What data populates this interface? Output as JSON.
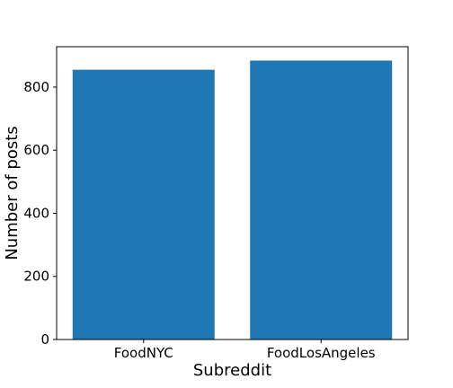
{
  "chart_data": {
    "type": "bar",
    "title": "",
    "xlabel": "Subreddit",
    "ylabel": "Number of posts",
    "categories": [
      "FoodNYC",
      "FoodLosAngeles"
    ],
    "values": [
      855,
      884
    ],
    "ylim": [
      0,
      928
    ],
    "yticks": [
      0,
      200,
      400,
      600,
      800
    ],
    "bar_color": "#1f77b4",
    "grid": false,
    "legend": "none"
  }
}
